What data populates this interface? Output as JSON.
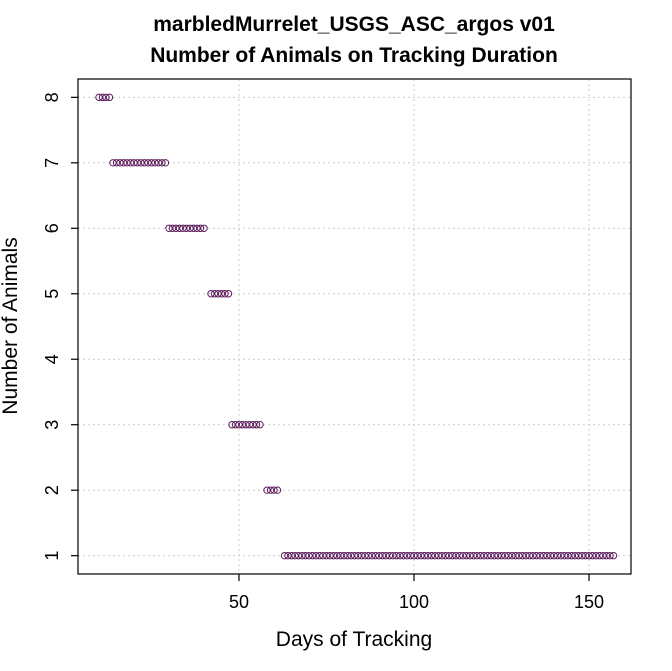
{
  "chart_data": {
    "type": "scatter",
    "title": "marbledMurrelet_USGS_ASC_argos v01",
    "subtitle": "Number of Animals on Tracking Duration",
    "xlabel": "Days of Tracking",
    "ylabel": "Number of Animals",
    "xlim": [
      4,
      162
    ],
    "ylim": [
      0.72,
      8.28
    ],
    "x_ticks": [
      50,
      100,
      150
    ],
    "y_ticks": [
      1,
      2,
      3,
      4,
      5,
      6,
      7,
      8
    ],
    "grid": true,
    "point_color": "#5a1a5a",
    "series": [
      {
        "groups": [
          {
            "y": 8,
            "x_from": 10,
            "x_to": 13
          },
          {
            "y": 7,
            "x_from": 14,
            "x_to": 29
          },
          {
            "y": 6,
            "x_from": 30,
            "x_to": 40
          },
          {
            "y": 5,
            "x_from": 42,
            "x_to": 47
          },
          {
            "y": 3,
            "x_from": 48,
            "x_to": 56
          },
          {
            "y": 2,
            "x_from": 58,
            "x_to": 61
          },
          {
            "y": 1,
            "x_from": 63,
            "x_to": 157
          }
        ]
      }
    ]
  }
}
